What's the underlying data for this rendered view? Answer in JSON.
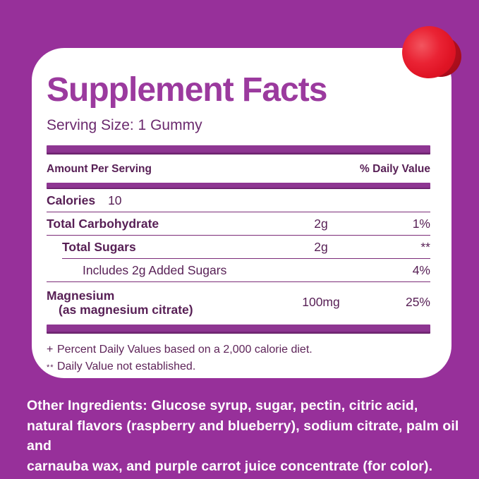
{
  "colors": {
    "background": "#97309a",
    "card": "#ffffff",
    "title_purple": "#9b3a9e",
    "bar_purple": "#8e3692",
    "text_plum": "#571f55",
    "gummy_red": "#e51e2b"
  },
  "label": {
    "title": "Supplement Facts",
    "serving_size": "Serving Size: 1 Gummy",
    "header": {
      "amount": "Amount Per Serving",
      "daily_value": "% Daily Value"
    },
    "rows": [
      {
        "name": "Calories",
        "value": "10"
      },
      {
        "name": "Total Carbohydrate",
        "amount": "2g",
        "daily_value": "1%"
      },
      {
        "name": "Total Sugars",
        "amount": "2g",
        "daily_value": "**"
      },
      {
        "name": "Includes 2g Added Sugars",
        "daily_value": "4%"
      },
      {
        "name": "Magnesium",
        "detail": "(as magnesium citrate)",
        "amount": "100mg",
        "daily_value": "25%"
      }
    ],
    "footnotes": [
      {
        "symbol": "+",
        "text": "Percent Daily Values based on a 2,000 calorie diet."
      },
      {
        "symbol": "**",
        "text": "Daily Value not established."
      }
    ]
  },
  "other_ingredients": {
    "label": "Other Ingredients:",
    "line1_rest": " Glucose syrup, sugar, pectin, citric acid,",
    "line2": "natural flavors (raspberry and blueberry), sodium citrate, palm oil and",
    "line3": "carnauba wax, and purple carrot juice concentrate (for color).",
    "full_text": "Other Ingredients: Glucose syrup, sugar, pectin, citric acid, natural flavors (raspberry and blueberry), sodium citrate, palm oil and carnauba wax, and purple carrot juice concentrate (for color)."
  }
}
